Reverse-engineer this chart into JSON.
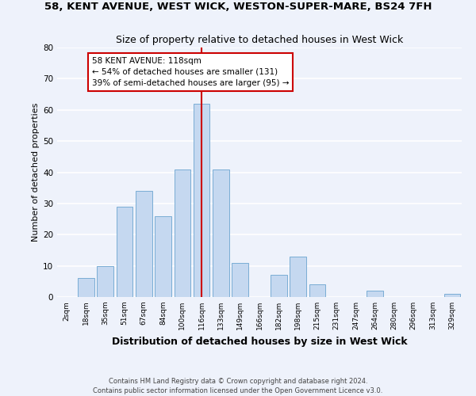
{
  "title1": "58, KENT AVENUE, WEST WICK, WESTON-SUPER-MARE, BS24 7FH",
  "title2": "Size of property relative to detached houses in West Wick",
  "xlabel": "Distribution of detached houses by size in West Wick",
  "ylabel": "Number of detached properties",
  "categories": [
    "2sqm",
    "18sqm",
    "35sqm",
    "51sqm",
    "67sqm",
    "84sqm",
    "100sqm",
    "116sqm",
    "133sqm",
    "149sqm",
    "166sqm",
    "182sqm",
    "198sqm",
    "215sqm",
    "231sqm",
    "247sqm",
    "264sqm",
    "280sqm",
    "296sqm",
    "313sqm",
    "329sqm"
  ],
  "values": [
    0,
    6,
    10,
    29,
    34,
    26,
    41,
    62,
    41,
    11,
    0,
    7,
    13,
    4,
    0,
    0,
    2,
    0,
    0,
    0,
    1
  ],
  "bar_color": "#c5d8f0",
  "bar_edge_color": "#7aadd4",
  "marker_index": 7,
  "marker_line_color": "#cc0000",
  "annotation_text": "58 KENT AVENUE: 118sqm\n← 54% of detached houses are smaller (131)\n39% of semi-detached houses are larger (95) →",
  "annotation_box_color": "#ffffff",
  "annotation_box_edge_color": "#cc0000",
  "ylim": [
    0,
    80
  ],
  "yticks": [
    0,
    10,
    20,
    30,
    40,
    50,
    60,
    70,
    80
  ],
  "footnote1": "Contains HM Land Registry data © Crown copyright and database right 2024.",
  "footnote2": "Contains public sector information licensed under the Open Government Licence v3.0.",
  "bg_color": "#eef2fb",
  "grid_color": "#ffffff",
  "title1_fontsize": 9.5,
  "title2_fontsize": 9,
  "xlabel_fontsize": 9,
  "ylabel_fontsize": 8,
  "annotation_fontsize": 7.5
}
